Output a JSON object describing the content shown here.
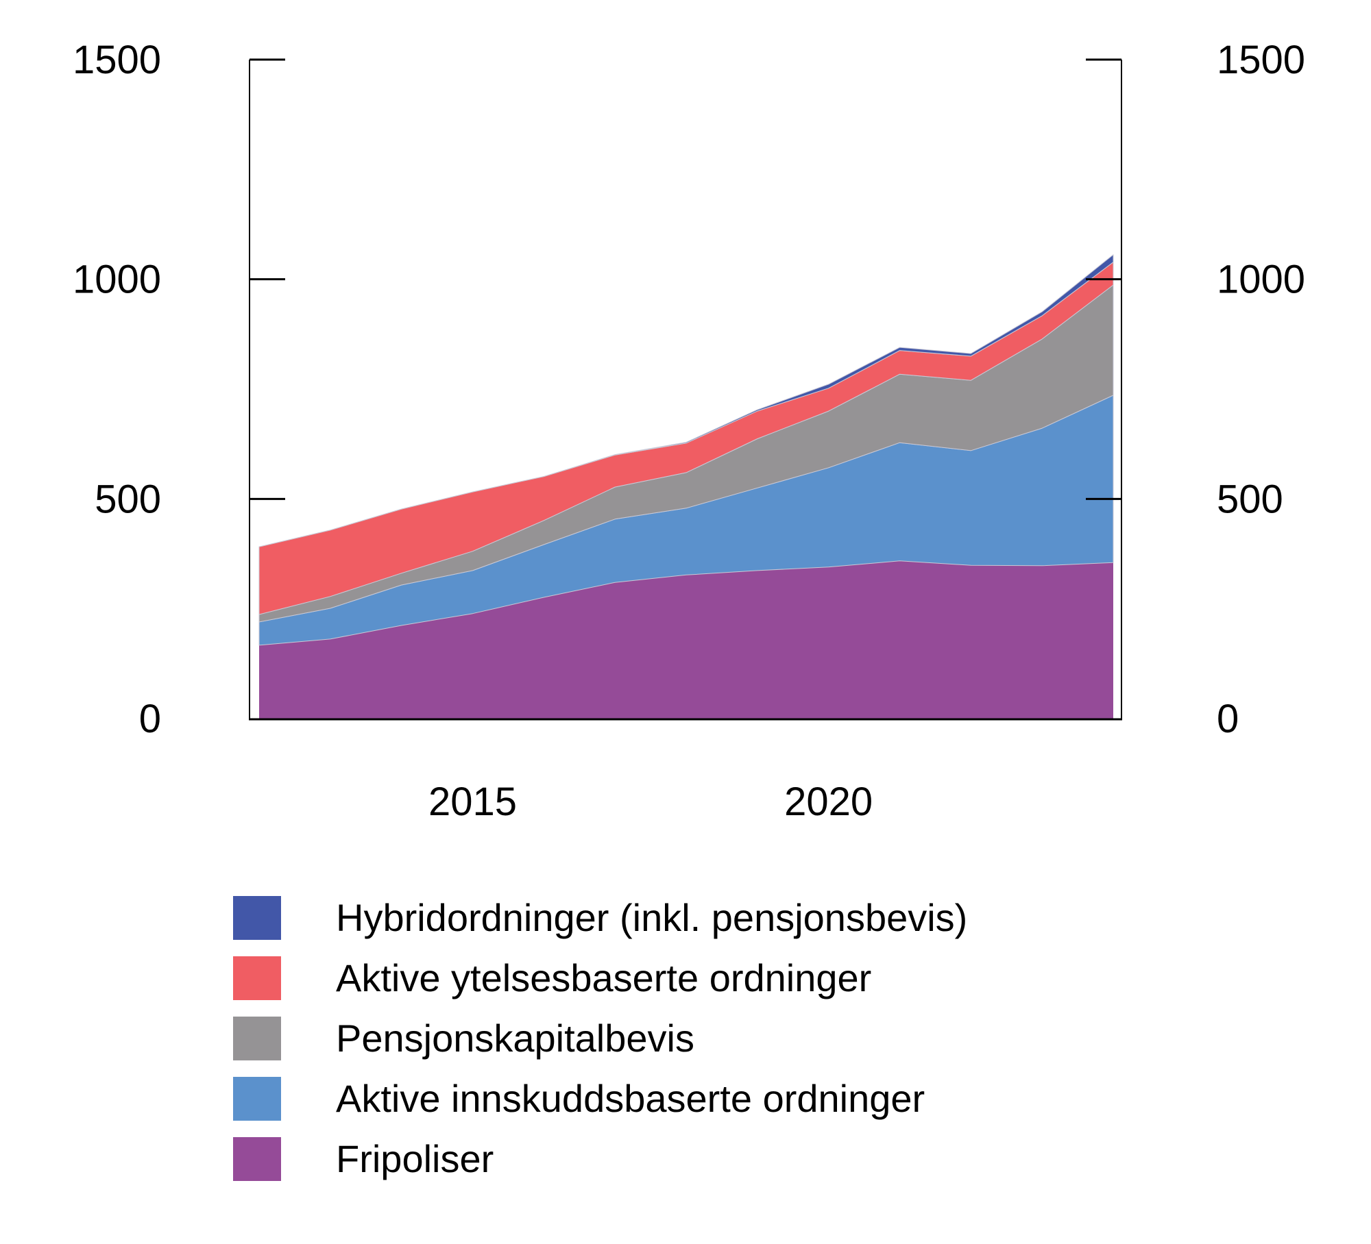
{
  "chart_data": {
    "type": "area",
    "stacked": true,
    "title": "",
    "xlabel": "",
    "ylabel": "",
    "x": [
      2012,
      2013,
      2014,
      2015,
      2016,
      2017,
      2018,
      2019,
      2020,
      2021,
      2022,
      2023,
      2024
    ],
    "xticks": [
      2015,
      2020
    ],
    "xtick_labels": [
      "2015",
      "2020"
    ],
    "ylim": [
      0,
      1500
    ],
    "yticks": [
      0,
      500,
      1000,
      1500
    ],
    "ytick_labels": [
      "0",
      "500",
      "1000",
      "1500"
    ],
    "secondary_y_axis": true,
    "grid": false,
    "legend_position": "bottom",
    "series": [
      {
        "name": "Fripoliser",
        "color": "#954B98",
        "values": [
          167,
          181,
          212,
          239,
          276,
          310,
          327,
          337,
          345,
          359,
          349,
          348,
          355
        ]
      },
      {
        "name": "Aktive innskuddsbaserte ordninger",
        "color": "#5B91CC",
        "values": [
          53,
          70,
          92,
          98,
          120,
          144,
          152,
          188,
          226,
          269,
          261,
          313,
          381
        ]
      },
      {
        "name": "Pensjonskapitalbevis",
        "color": "#959395",
        "values": [
          17,
          27,
          27,
          44,
          55,
          73,
          81,
          112,
          129,
          156,
          160,
          203,
          251
        ]
      },
      {
        "name": "Aktive ytelsesbaserte ordninger",
        "color": "#F05D63",
        "values": [
          154,
          151,
          146,
          135,
          100,
          73,
          67,
          63,
          52,
          54,
          55,
          53,
          52
        ]
      },
      {
        "name": "Hybridordninger (inkl. pensjonsbevis)",
        "color": "#4257A8",
        "values": [
          0,
          0,
          0,
          0,
          0,
          1,
          2,
          3,
          9,
          7,
          6,
          9,
          17
        ]
      }
    ]
  },
  "legend": {
    "items": [
      {
        "label": "Hybridordninger (inkl. pensjonsbevis)",
        "color": "#4257A8"
      },
      {
        "label": "Aktive ytelsesbaserte ordninger",
        "color": "#F05D63"
      },
      {
        "label": "Pensjonskapitalbevis",
        "color": "#959395"
      },
      {
        "label": "Aktive innskuddsbaserte ordninger",
        "color": "#5B91CC"
      },
      {
        "label": "Fripoliser",
        "color": "#954B98"
      }
    ]
  }
}
